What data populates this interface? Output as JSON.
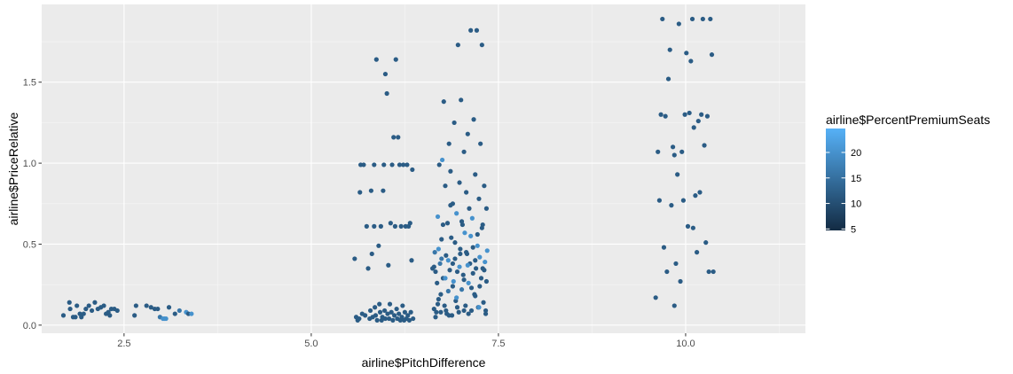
{
  "chart_data": {
    "type": "scatter",
    "title": "",
    "xlabel": "airline$PitchDifference",
    "ylabel": "airline$PriceRelative",
    "xlim": [
      1.4,
      11.6
    ],
    "ylim": [
      -0.05,
      1.98
    ],
    "x_ticks": [
      2.5,
      5.0,
      7.5,
      10.0
    ],
    "x_tick_labels": [
      "2.5",
      "5.0",
      "7.5",
      "10.0"
    ],
    "y_ticks": [
      0.0,
      0.5,
      1.0,
      1.5
    ],
    "y_tick_labels": [
      "0.0",
      "0.5",
      "1.0",
      "1.5"
    ],
    "grid": true,
    "color_scale": {
      "name": "airline$PercentPremiumSeats",
      "min": 4.71,
      "max": 24.69,
      "low_color": "#132B43",
      "high_color": "#56B1F7",
      "ticks": [
        5,
        10,
        15,
        20
      ],
      "tick_labels": [
        "5",
        "10",
        "15",
        "20"
      ]
    },
    "legend_position": "right",
    "points": [
      [
        1.69,
        0.06,
        12
      ],
      [
        1.77,
        0.14,
        12
      ],
      [
        1.78,
        0.1,
        12
      ],
      [
        1.82,
        0.05,
        12
      ],
      [
        1.85,
        0.05,
        12
      ],
      [
        1.87,
        0.12,
        12
      ],
      [
        1.91,
        0.07,
        12
      ],
      [
        1.93,
        0.05,
        12
      ],
      [
        1.96,
        0.07,
        12
      ],
      [
        1.99,
        0.1,
        12
      ],
      [
        2.03,
        0.12,
        12
      ],
      [
        2.07,
        0.09,
        12
      ],
      [
        2.11,
        0.14,
        12
      ],
      [
        2.15,
        0.1,
        12
      ],
      [
        2.19,
        0.11,
        12
      ],
      [
        2.23,
        0.12,
        12
      ],
      [
        2.26,
        0.07,
        12
      ],
      [
        2.29,
        0.08,
        12
      ],
      [
        2.31,
        0.06,
        12
      ],
      [
        2.33,
        0.1,
        12
      ],
      [
        2.37,
        0.1,
        12
      ],
      [
        2.41,
        0.09,
        12
      ],
      [
        2.64,
        0.06,
        12
      ],
      [
        2.66,
        0.12,
        12
      ],
      [
        2.8,
        0.12,
        12
      ],
      [
        2.86,
        0.11,
        12
      ],
      [
        2.91,
        0.1,
        12
      ],
      [
        2.95,
        0.1,
        12
      ],
      [
        2.98,
        0.05,
        16
      ],
      [
        3.02,
        0.04,
        20
      ],
      [
        3.04,
        0.04,
        20
      ],
      [
        3.06,
        0.04,
        20
      ],
      [
        3.1,
        0.11,
        12
      ],
      [
        3.18,
        0.07,
        12
      ],
      [
        3.24,
        0.09,
        16
      ],
      [
        3.33,
        0.08,
        20
      ],
      [
        3.36,
        0.07,
        12
      ],
      [
        3.4,
        0.07,
        20
      ],
      [
        5.58,
        0.41,
        12
      ],
      [
        5.6,
        0.05,
        12
      ],
      [
        5.62,
        0.03,
        12
      ],
      [
        5.64,
        0.04,
        12
      ],
      [
        5.65,
        0.82,
        12
      ],
      [
        5.66,
        0.99,
        12
      ],
      [
        5.68,
        0.07,
        12
      ],
      [
        5.7,
        0.99,
        12
      ],
      [
        5.72,
        0.06,
        12
      ],
      [
        5.74,
        0.61,
        12
      ],
      [
        5.76,
        0.35,
        12
      ],
      [
        5.78,
        0.04,
        12
      ],
      [
        5.79,
        0.09,
        12
      ],
      [
        5.8,
        0.83,
        12
      ],
      [
        5.81,
        0.44,
        12
      ],
      [
        5.82,
        0.05,
        12
      ],
      [
        5.84,
        0.61,
        12
      ],
      [
        5.84,
        0.99,
        12
      ],
      [
        5.85,
        0.11,
        12
      ],
      [
        5.86,
        0.06,
        12
      ],
      [
        5.87,
        1.64,
        12
      ],
      [
        5.88,
        0.03,
        12
      ],
      [
        5.9,
        0.49,
        12
      ],
      [
        5.91,
        0.13,
        12
      ],
      [
        5.92,
        0.08,
        12
      ],
      [
        5.93,
        0.61,
        12
      ],
      [
        5.94,
        0.03,
        12
      ],
      [
        5.95,
        0.05,
        12
      ],
      [
        5.96,
        0.83,
        12
      ],
      [
        5.97,
        0.99,
        12
      ],
      [
        5.98,
        0.09,
        12
      ],
      [
        5.99,
        1.55,
        12
      ],
      [
        5.99,
        0.04,
        12
      ],
      [
        6.01,
        1.43,
        12
      ],
      [
        6.02,
        0.07,
        12
      ],
      [
        6.03,
        0.37,
        12
      ],
      [
        6.04,
        0.04,
        12
      ],
      [
        6.05,
        0.13,
        12
      ],
      [
        6.06,
        0.63,
        12
      ],
      [
        6.07,
        0.08,
        12
      ],
      [
        6.08,
        0.99,
        12
      ],
      [
        6.09,
        0.03,
        12
      ],
      [
        6.1,
        1.16,
        12
      ],
      [
        6.11,
        0.06,
        12
      ],
      [
        6.12,
        0.61,
        12
      ],
      [
        6.13,
        1.64,
        12
      ],
      [
        6.14,
        0.1,
        12
      ],
      [
        6.15,
        0.04,
        12
      ],
      [
        6.16,
        1.16,
        12
      ],
      [
        6.17,
        0.07,
        12
      ],
      [
        6.18,
        0.99,
        12
      ],
      [
        6.19,
        0.03,
        12
      ],
      [
        6.2,
        0.61,
        12
      ],
      [
        6.21,
        0.05,
        12
      ],
      [
        6.22,
        0.12,
        12
      ],
      [
        6.23,
        0.99,
        12
      ],
      [
        6.24,
        0.03,
        12
      ],
      [
        6.25,
        0.08,
        12
      ],
      [
        6.26,
        0.61,
        12
      ],
      [
        6.27,
        0.04,
        12
      ],
      [
        6.28,
        0.99,
        12
      ],
      [
        6.29,
        0.06,
        12
      ],
      [
        6.3,
        0.61,
        12
      ],
      [
        6.31,
        0.03,
        12
      ],
      [
        6.32,
        0.63,
        12
      ],
      [
        6.33,
        0.08,
        12
      ],
      [
        6.34,
        0.4,
        12
      ],
      [
        6.35,
        0.96,
        12
      ],
      [
        6.36,
        0.04,
        12
      ],
      [
        6.62,
        0.35,
        12
      ],
      [
        6.64,
        0.1,
        12
      ],
      [
        6.65,
        0.45,
        16
      ],
      [
        6.66,
        0.05,
        12
      ],
      [
        6.68,
        0.26,
        12
      ],
      [
        6.69,
        0.67,
        20
      ],
      [
        6.7,
        0.16,
        12
      ],
      [
        6.71,
        0.99,
        12
      ],
      [
        6.72,
        0.38,
        16
      ],
      [
        6.73,
        0.08,
        12
      ],
      [
        6.74,
        0.53,
        12
      ],
      [
        6.75,
        1.02,
        20
      ],
      [
        6.76,
        0.29,
        12
      ],
      [
        6.77,
        1.38,
        12
      ],
      [
        6.78,
        0.12,
        12
      ],
      [
        6.79,
        0.86,
        12
      ],
      [
        6.8,
        0.43,
        12
      ],
      [
        6.81,
        0.07,
        12
      ],
      [
        6.82,
        0.63,
        12
      ],
      [
        6.83,
        0.21,
        16
      ],
      [
        6.84,
        1.12,
        12
      ],
      [
        6.85,
        0.34,
        12
      ],
      [
        6.86,
        0.95,
        12
      ],
      [
        6.87,
        0.54,
        12
      ],
      [
        6.88,
        0.06,
        12
      ],
      [
        6.89,
        0.75,
        12
      ],
      [
        6.9,
        0.27,
        20
      ],
      [
        6.91,
        1.25,
        12
      ],
      [
        6.92,
        0.41,
        12
      ],
      [
        6.93,
        0.15,
        12
      ],
      [
        6.94,
        0.69,
        20
      ],
      [
        6.95,
        0.33,
        12
      ],
      [
        6.96,
        1.73,
        12
      ],
      [
        6.97,
        0.08,
        12
      ],
      [
        6.98,
        0.88,
        12
      ],
      [
        6.99,
        0.47,
        12
      ],
      [
        7.0,
        1.39,
        12
      ],
      [
        7.01,
        0.22,
        16
      ],
      [
        7.02,
        0.62,
        12
      ],
      [
        7.03,
        0.31,
        12
      ],
      [
        7.04,
        1.07,
        12
      ],
      [
        7.05,
        0.57,
        20
      ],
      [
        7.06,
        0.12,
        12
      ],
      [
        7.07,
        0.82,
        12
      ],
      [
        7.08,
        0.44,
        12
      ],
      [
        7.09,
        1.18,
        12
      ],
      [
        7.1,
        0.26,
        20
      ],
      [
        7.11,
        0.72,
        12
      ],
      [
        7.12,
        0.38,
        12
      ],
      [
        7.13,
        1.82,
        12
      ],
      [
        7.14,
        0.09,
        12
      ],
      [
        7.15,
        0.66,
        20
      ],
      [
        7.16,
        0.48,
        12
      ],
      [
        7.17,
        1.27,
        12
      ],
      [
        7.18,
        0.19,
        12
      ],
      [
        7.19,
        0.93,
        12
      ],
      [
        7.2,
        0.35,
        12
      ],
      [
        7.21,
        1.82,
        12
      ],
      [
        7.22,
        0.56,
        12
      ],
      [
        7.23,
        0.11,
        12
      ],
      [
        7.24,
        0.78,
        12
      ],
      [
        7.25,
        0.42,
        20
      ],
      [
        7.26,
        1.12,
        12
      ],
      [
        7.27,
        0.29,
        12
      ],
      [
        7.28,
        1.73,
        12
      ],
      [
        7.29,
        0.62,
        12
      ],
      [
        7.3,
        0.14,
        12
      ],
      [
        7.31,
        0.86,
        12
      ],
      [
        7.32,
        0.39,
        20
      ],
      [
        7.33,
        0.07,
        12
      ],
      [
        7.34,
        0.72,
        12
      ],
      [
        6.66,
        0.33,
        12
      ],
      [
        6.67,
        0.08,
        12
      ],
      [
        6.7,
        0.47,
        20
      ],
      [
        6.73,
        0.19,
        12
      ],
      [
        6.76,
        0.62,
        12
      ],
      [
        6.8,
        0.09,
        12
      ],
      [
        6.83,
        0.4,
        20
      ],
      [
        6.86,
        0.74,
        12
      ],
      [
        6.89,
        0.24,
        12
      ],
      [
        6.92,
        0.51,
        12
      ],
      [
        6.95,
        0.11,
        12
      ],
      [
        6.98,
        0.36,
        20
      ],
      [
        7.01,
        0.64,
        12
      ],
      [
        7.04,
        0.28,
        12
      ],
      [
        7.07,
        0.45,
        12
      ],
      [
        7.1,
        0.07,
        12
      ],
      [
        7.13,
        0.55,
        20
      ],
      [
        7.16,
        0.32,
        12
      ],
      [
        7.19,
        0.18,
        12
      ],
      [
        7.22,
        0.49,
        20
      ],
      [
        7.25,
        0.24,
        12
      ],
      [
        7.28,
        0.6,
        12
      ],
      [
        7.31,
        0.34,
        12
      ],
      [
        7.33,
        0.09,
        12
      ],
      [
        7.35,
        0.46,
        20
      ],
      [
        6.64,
        0.36,
        12
      ],
      [
        6.69,
        0.13,
        12
      ],
      [
        6.74,
        0.41,
        16
      ],
      [
        6.79,
        0.29,
        20
      ],
      [
        6.84,
        0.06,
        12
      ],
      [
        6.89,
        0.38,
        12
      ],
      [
        6.94,
        0.17,
        20
      ],
      [
        6.99,
        0.44,
        12
      ],
      [
        7.04,
        0.09,
        12
      ],
      [
        7.09,
        0.37,
        20
      ],
      [
        7.14,
        0.23,
        12
      ],
      [
        7.19,
        0.4,
        12
      ],
      [
        7.24,
        0.11,
        20
      ],
      [
        7.29,
        0.35,
        12
      ],
      [
        7.34,
        0.27,
        12
      ],
      [
        9.6,
        0.17,
        12
      ],
      [
        9.63,
        1.07,
        12
      ],
      [
        9.65,
        0.77,
        12
      ],
      [
        9.67,
        1.3,
        12
      ],
      [
        9.69,
        1.89,
        12
      ],
      [
        9.71,
        0.48,
        12
      ],
      [
        9.73,
        1.29,
        12
      ],
      [
        9.75,
        0.33,
        12
      ],
      [
        9.77,
        1.52,
        12
      ],
      [
        9.79,
        1.7,
        12
      ],
      [
        9.81,
        0.74,
        12
      ],
      [
        9.83,
        1.1,
        12
      ],
      [
        9.85,
        1.05,
        12
      ],
      [
        9.87,
        0.38,
        12
      ],
      [
        9.89,
        0.93,
        12
      ],
      [
        9.91,
        1.86,
        12
      ],
      [
        9.93,
        0.27,
        12
      ],
      [
        9.95,
        1.07,
        12
      ],
      [
        9.97,
        0.77,
        12
      ],
      [
        9.99,
        1.3,
        12
      ],
      [
        10.01,
        1.68,
        12
      ],
      [
        10.03,
        0.61,
        12
      ],
      [
        10.05,
        1.31,
        12
      ],
      [
        10.07,
        1.63,
        12
      ],
      [
        10.09,
        1.89,
        12
      ],
      [
        10.11,
        1.22,
        12
      ],
      [
        10.13,
        0.8,
        12
      ],
      [
        10.15,
        0.45,
        12
      ],
      [
        10.17,
        1.26,
        12
      ],
      [
        10.19,
        0.82,
        12
      ],
      [
        10.21,
        1.3,
        12
      ],
      [
        10.23,
        1.89,
        12
      ],
      [
        10.25,
        1.11,
        12
      ],
      [
        10.27,
        0.51,
        12
      ],
      [
        10.29,
        1.29,
        12
      ],
      [
        10.31,
        0.33,
        12
      ],
      [
        10.33,
        1.89,
        12
      ],
      [
        10.35,
        1.67,
        12
      ],
      [
        10.37,
        0.33,
        12
      ],
      [
        9.85,
        0.12,
        12
      ],
      [
        10.1,
        0.6,
        12
      ]
    ]
  }
}
